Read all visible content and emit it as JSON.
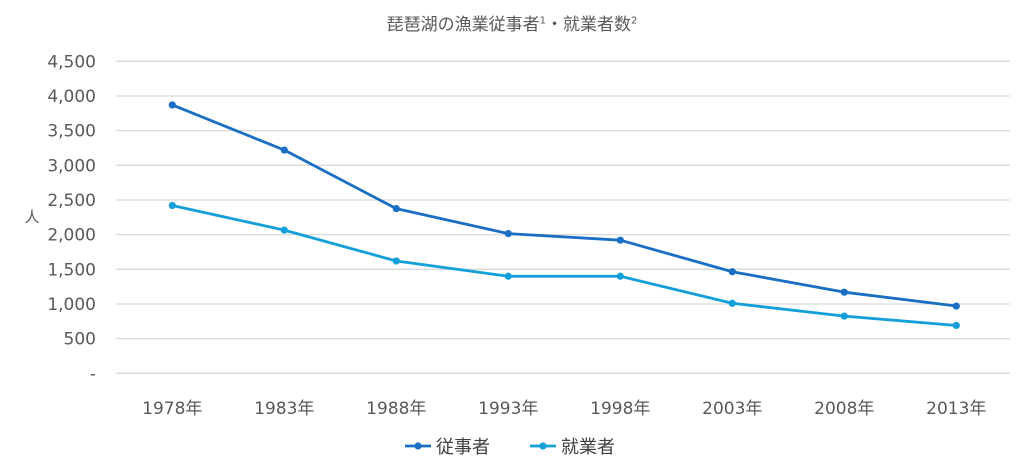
{
  "chart_data": {
    "type": "line",
    "title": "琵琶湖の漁業従事者・就業者数",
    "title_parts": {
      "main1": "琵琶湖の漁業従事者",
      "sup1": "1",
      "mid": "・就業者数",
      "sup2": "2"
    },
    "ylabel": "人",
    "xlabel": "",
    "ylim": [
      0,
      4500
    ],
    "yticks": [
      "-",
      "500",
      "1,000",
      "1,500",
      "2,000",
      "2,500",
      "3,000",
      "3,500",
      "4,000",
      "4,500"
    ],
    "grid": true,
    "legend": "bottom",
    "categories": [
      "1978年",
      "1983年",
      "1988年",
      "1993年",
      "1998年",
      "2003年",
      "2008年",
      "2013年"
    ],
    "series": [
      {
        "name": "従事者",
        "color": "#1a6fc4",
        "values": [
          3870,
          3220,
          2375,
          2015,
          1920,
          1465,
          1170,
          970
        ]
      },
      {
        "name": "就業者",
        "color": "#13a0da",
        "values": [
          2420,
          2065,
          1620,
          1400,
          1400,
          1010,
          825,
          690
        ]
      }
    ]
  }
}
